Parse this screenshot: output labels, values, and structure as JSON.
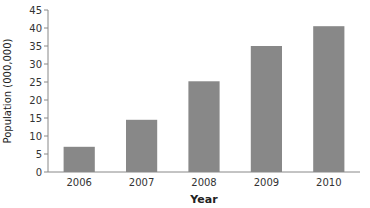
{
  "chart_data": {
    "type": "bar",
    "categories": [
      "2006",
      "2007",
      "2008",
      "2009",
      "2010"
    ],
    "values": [
      7,
      14.5,
      25.2,
      35,
      40.5
    ],
    "color": "#888888",
    "xlabel": "Year",
    "ylabel": "Population (000,000)",
    "ylim": [
      0,
      45
    ],
    "yticks": [
      0,
      5,
      10,
      15,
      20,
      25,
      30,
      35,
      40,
      45
    ],
    "grid": false
  }
}
